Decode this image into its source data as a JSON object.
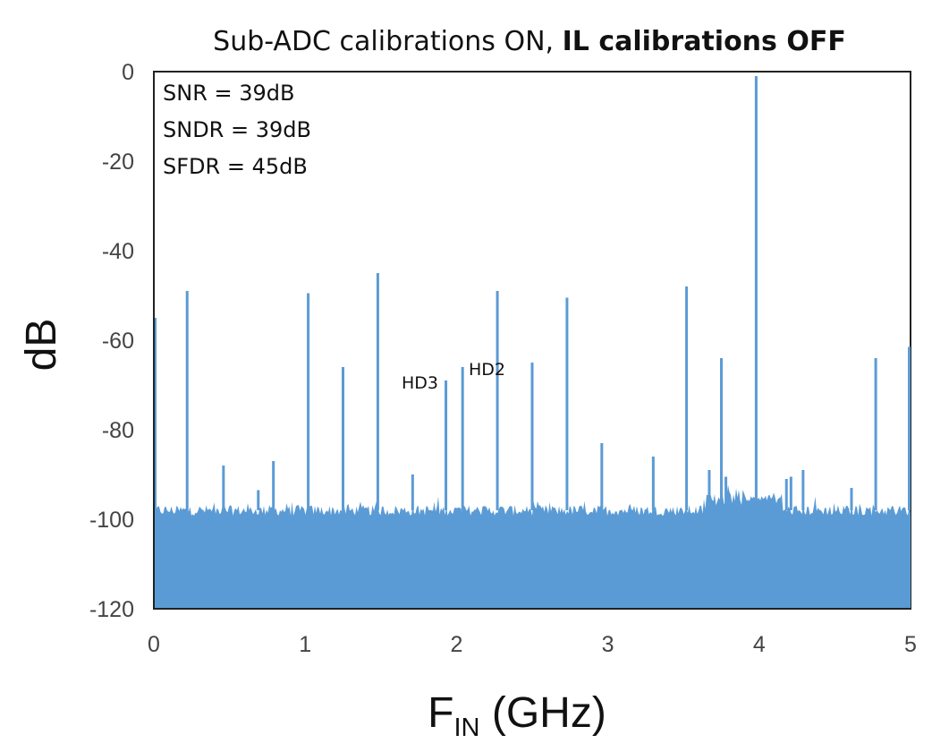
{
  "chart_data": {
    "type": "line",
    "title": {
      "normal": "Sub-ADC calibrations ON, ",
      "bold": "IL calibrations OFF"
    },
    "xlabel": {
      "main": "F",
      "subscript": "IN",
      "suffix": " (GHz)"
    },
    "ylabel": "dB",
    "xlim": [
      0,
      5
    ],
    "ylim": [
      -120,
      0
    ],
    "x_ticks": [
      0,
      1,
      2,
      3,
      4,
      5
    ],
    "x_tick_labels": [
      "0",
      "1",
      "2",
      "3",
      "4",
      "5"
    ],
    "y_ticks": [
      0,
      -20,
      -40,
      -60,
      -80,
      -100,
      -120
    ],
    "y_tick_labels": [
      "0",
      "-20",
      "-40",
      "-60",
      "-80",
      "-100",
      "-120"
    ],
    "grid": false,
    "legend": "none",
    "series_color": "#5b9bd5",
    "noise_floor_db": -98,
    "stats": [
      "SNR = 39dB",
      "SNDR = 39dB",
      "SFDR = 45dB"
    ],
    "annotations": [
      {
        "text": "HD3",
        "x": 1.93,
        "y": -69
      },
      {
        "text": "HD2",
        "x": 2.04,
        "y": -66
      }
    ],
    "spurs": [
      {
        "x": 0.0,
        "y": -55
      },
      {
        "x": 0.22,
        "y": -49
      },
      {
        "x": 0.46,
        "y": -88
      },
      {
        "x": 0.69,
        "y": -93.5
      },
      {
        "x": 0.79,
        "y": -87
      },
      {
        "x": 1.02,
        "y": -49.5
      },
      {
        "x": 1.25,
        "y": -66
      },
      {
        "x": 1.48,
        "y": -45
      },
      {
        "x": 1.71,
        "y": -90
      },
      {
        "x": 1.93,
        "y": -69
      },
      {
        "x": 2.04,
        "y": -66
      },
      {
        "x": 2.27,
        "y": -49
      },
      {
        "x": 2.5,
        "y": -65
      },
      {
        "x": 2.73,
        "y": -50.5
      },
      {
        "x": 2.96,
        "y": -83
      },
      {
        "x": 3.3,
        "y": -86
      },
      {
        "x": 3.52,
        "y": -48
      },
      {
        "x": 3.67,
        "y": -89
      },
      {
        "x": 3.75,
        "y": -64
      },
      {
        "x": 3.78,
        "y": -90.5
      },
      {
        "x": 3.98,
        "y": -1
      },
      {
        "x": 4.18,
        "y": -91
      },
      {
        "x": 4.21,
        "y": -90.5
      },
      {
        "x": 4.29,
        "y": -89
      },
      {
        "x": 4.61,
        "y": -93
      },
      {
        "x": 4.77,
        "y": -64
      },
      {
        "x": 5.0,
        "y": -61.5
      }
    ]
  }
}
